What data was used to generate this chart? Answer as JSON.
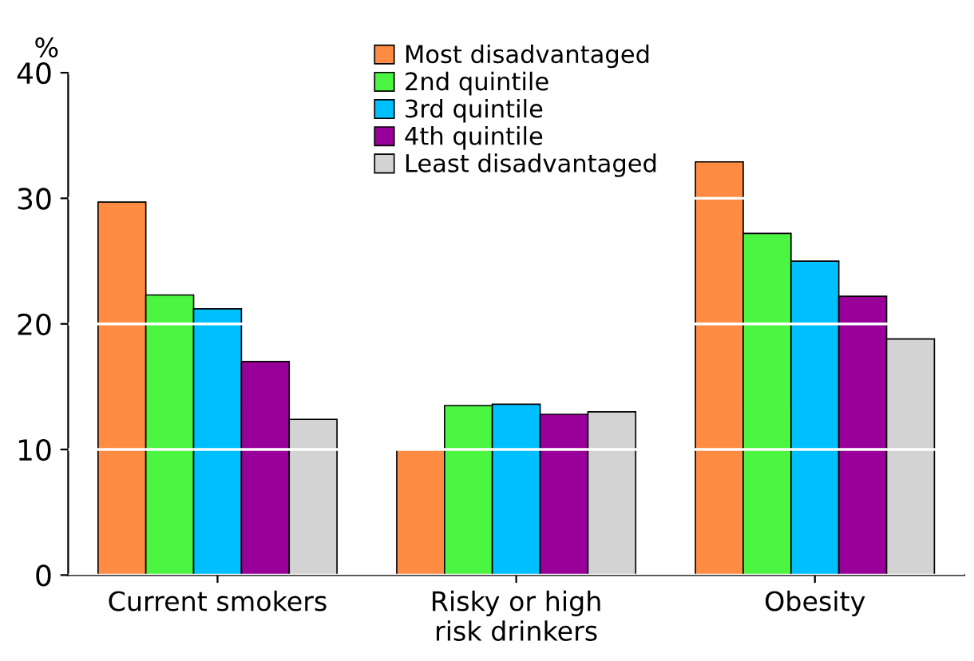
{
  "chart_data": {
    "type": "bar",
    "ylabel": "%",
    "categories": [
      "Current smokers",
      "Risky or high\nrisk drinkers",
      "Obesity"
    ],
    "series": [
      {
        "name": "Most disadvantaged",
        "color": "#ff8c42",
        "values": [
          29.7,
          10.0,
          32.9
        ]
      },
      {
        "name": "2nd quintile",
        "color": "#4cf542",
        "values": [
          22.3,
          13.5,
          27.2
        ]
      },
      {
        "name": "3rd quintile",
        "color": "#00bfff",
        "values": [
          21.2,
          13.6,
          25.0
        ]
      },
      {
        "name": "4th quintile",
        "color": "#990099",
        "values": [
          17.0,
          12.8,
          22.2
        ]
      },
      {
        "name": "Least disadvantaged",
        "color": "#d3d3d3",
        "values": [
          12.4,
          13.0,
          18.8
        ]
      }
    ],
    "ylim": [
      0,
      40
    ],
    "yticks": [
      0,
      10,
      20,
      30,
      40
    ],
    "grid": "y",
    "legend": "top"
  }
}
